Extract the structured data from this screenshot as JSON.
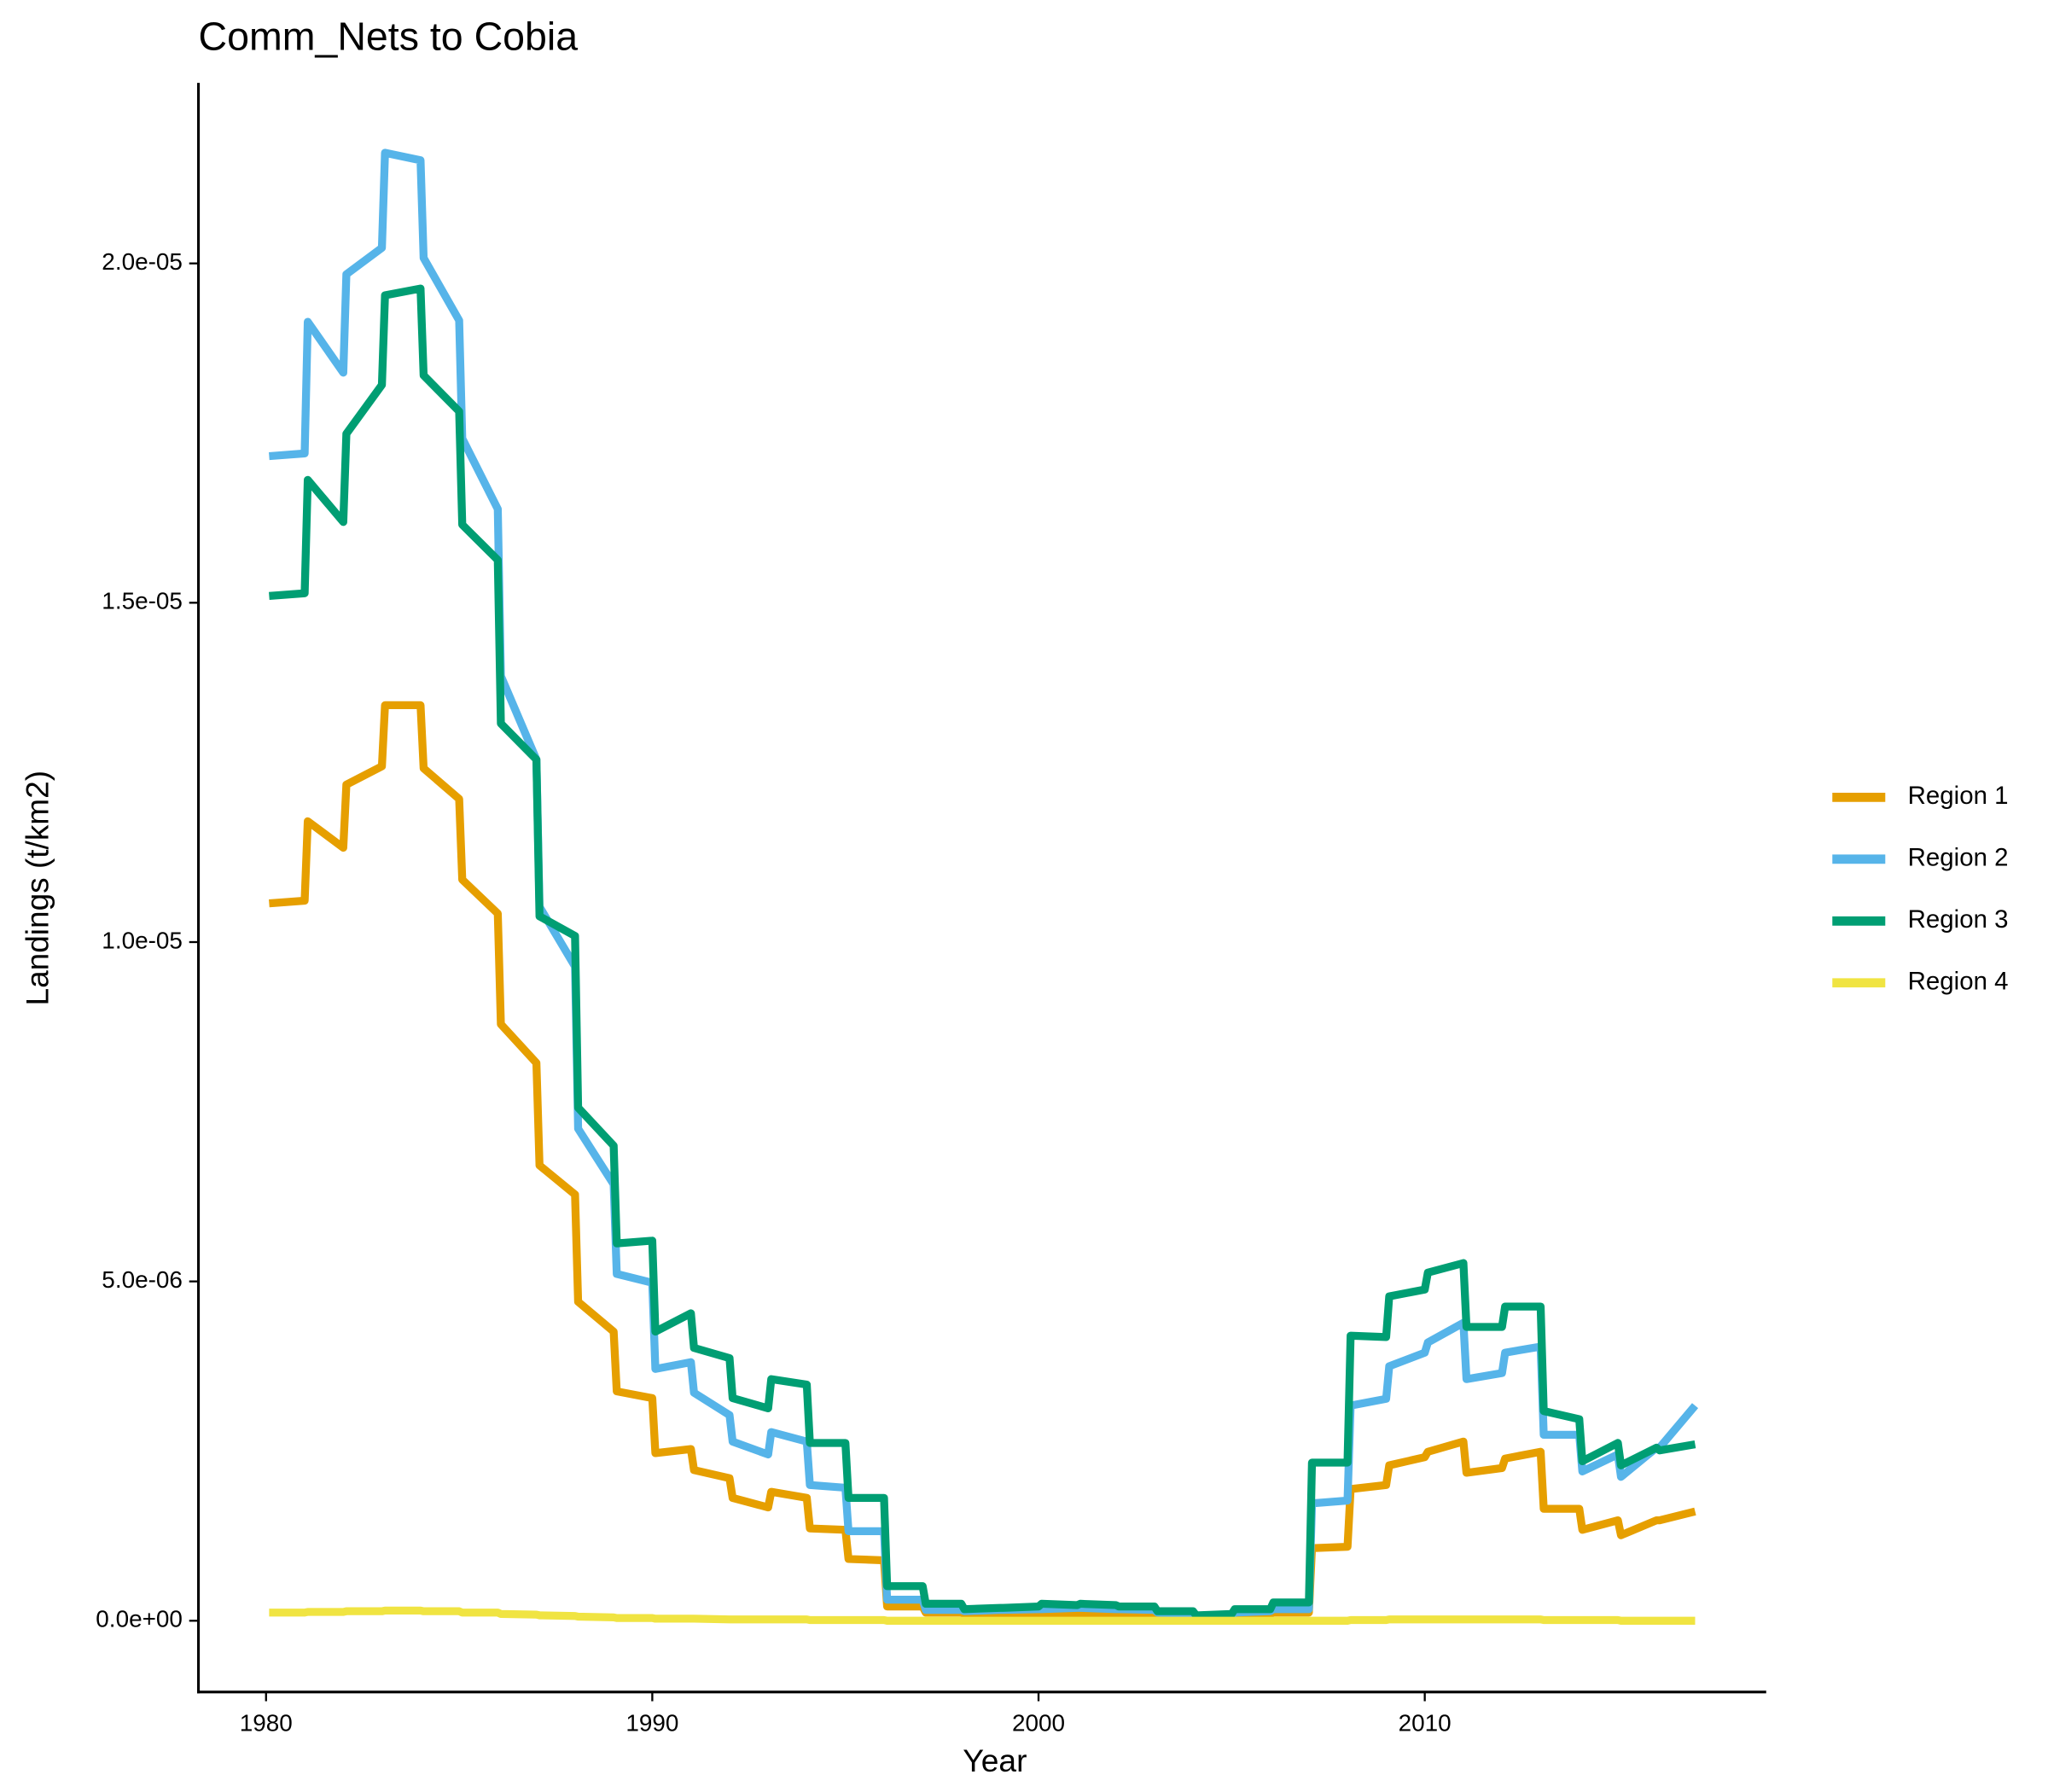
{
  "chart_data": {
    "type": "line",
    "title": "Comm_Nets to Cobia",
    "x_label": "Year",
    "y_label": "Landings (t/km2)",
    "x": [
      1980.08,
      1981,
      1981.08,
      1982,
      1982.08,
      1983,
      1983.08,
      1984,
      1984.08,
      1985,
      1985.08,
      1986,
      1986.08,
      1987,
      1987.08,
      1988,
      1988.08,
      1989,
      1989.08,
      1990,
      1990.08,
      1991,
      1991.08,
      1992,
      1992.08,
      1993,
      1993.08,
      1994,
      1994.08,
      1995,
      1995.08,
      1996,
      1996.08,
      1997,
      1997.08,
      1998,
      1998.08,
      1999,
      1999.08,
      2000,
      2000.08,
      2001,
      2001.08,
      2002,
      2002.08,
      2003,
      2003.08,
      2004,
      2004.08,
      2005,
      2005.08,
      2006,
      2006.08,
      2007,
      2007.08,
      2008,
      2008.08,
      2009,
      2009.08,
      2010,
      2010.08,
      2011,
      2011.08,
      2012,
      2012.08,
      2013,
      2013.08,
      2014,
      2014.08,
      2015,
      2015.08,
      2016,
      2016.08,
      2017
    ],
    "series": [
      {
        "name": "Region 1",
        "color": "#E69F00",
        "values": [
          1.057e-05,
          1.061e-05,
          1.178e-05,
          1.139e-05,
          1.232e-05,
          1.259e-05,
          1.349e-05,
          1.349e-05,
          1.256e-05,
          1.211e-05,
          1.092e-05,
          1.042e-05,
          8.79e-06,
          8.22e-06,
          6.71e-06,
          6.28e-06,
          4.7e-06,
          4.26e-06,
          3.38e-06,
          3.28e-06,
          2.47e-06,
          2.53e-06,
          2.22e-06,
          2.1e-06,
          1.81e-06,
          1.67e-06,
          1.9e-06,
          1.81e-06,
          1.36e-06,
          1.34e-06,
          9.1e-07,
          8.9e-07,
          2.1e-07,
          2.1e-07,
          1.2e-07,
          1.2e-07,
          1e-07,
          1e-07,
          1e-07,
          1.1e-07,
          1.1e-07,
          1.1e-07,
          1.1e-07,
          1.1e-07,
          1.1e-07,
          1e-07,
          8e-08,
          7e-08,
          5e-08,
          5e-08,
          9e-08,
          1e-07,
          1.2e-07,
          1.2e-07,
          1.07e-06,
          1.09e-06,
          1.94e-06,
          2e-06,
          2.29e-06,
          2.41e-06,
          2.49e-06,
          2.64e-06,
          2.18e-06,
          2.25e-06,
          2.39e-06,
          2.49e-06,
          1.65e-06,
          1.65e-06,
          1.34e-06,
          1.48e-06,
          1.26e-06,
          1.48e-06,
          1.48e-06,
          1.61e-06
        ]
      },
      {
        "name": "Region 2",
        "color": "#56B4E9",
        "values": [
          1.716e-05,
          1.72e-05,
          1.914e-05,
          1.839e-05,
          1.984e-05,
          2.023e-05,
          2.163e-05,
          2.152e-05,
          2.008e-05,
          1.916e-05,
          1.742e-05,
          1.638e-05,
          1.392e-05,
          1.269e-05,
          1.052e-05,
          9.64e-06,
          7.25e-06,
          6.43e-06,
          5.11e-06,
          4.98e-06,
          3.71e-06,
          3.81e-06,
          3.36e-06,
          3.03e-06,
          2.64e-06,
          2.45e-06,
          2.78e-06,
          2.64e-06,
          2e-06,
          1.96e-06,
          1.32e-06,
          1.32e-06,
          3.1e-07,
          3.1e-07,
          1.6e-07,
          1.6e-07,
          1.4e-07,
          1.6e-07,
          1.6e-07,
          1.7e-07,
          1.7e-07,
          1.9e-07,
          1.9e-07,
          1.7e-07,
          1.7e-07,
          1.6e-07,
          1.2e-07,
          1e-07,
          6e-08,
          6e-08,
          1.2e-07,
          1.4e-07,
          1.7e-07,
          1.7e-07,
          1.73e-06,
          1.77e-06,
          3.17e-06,
          3.27e-06,
          3.75e-06,
          3.95e-06,
          4.1e-06,
          4.39e-06,
          3.56e-06,
          3.65e-06,
          3.95e-06,
          4.04e-06,
          2.74e-06,
          2.74e-06,
          2.2e-06,
          2.45e-06,
          2.12e-06,
          2.55e-06,
          2.55e-06,
          3.17e-06
        ]
      },
      {
        "name": "Region 3",
        "color": "#009E73",
        "values": [
          1.51e-05,
          1.514e-05,
          1.681e-05,
          1.619e-05,
          1.749e-05,
          1.821e-05,
          1.953e-05,
          1.963e-05,
          1.835e-05,
          1.782e-05,
          1.615e-05,
          1.563e-05,
          1.322e-05,
          1.269e-05,
          1.038e-05,
          1.009e-05,
          7.56e-06,
          7e-06,
          5.56e-06,
          5.6e-06,
          4.26e-06,
          4.53e-06,
          4.02e-06,
          3.87e-06,
          3.28e-06,
          3.13e-06,
          3.56e-06,
          3.48e-06,
          2.62e-06,
          2.62e-06,
          1.81e-06,
          1.81e-06,
          5.1e-07,
          5.1e-07,
          2.5e-07,
          2.5e-07,
          1.7e-07,
          1.9e-07,
          1.9e-07,
          2.1e-07,
          2.5e-07,
          2.3e-07,
          2.5e-07,
          2.3e-07,
          2.1e-07,
          2.1e-07,
          1.4e-07,
          1.4e-07,
          8e-08,
          1e-07,
          1.7e-07,
          1.7e-07,
          2.7e-07,
          2.7e-07,
          2.33e-06,
          2.33e-06,
          4.2e-06,
          4.18e-06,
          4.78e-06,
          4.88e-06,
          5.13e-06,
          5.27e-06,
          4.33e-06,
          4.33e-06,
          4.63e-06,
          4.63e-06,
          3.09e-06,
          2.97e-06,
          2.35e-06,
          2.62e-06,
          2.29e-06,
          2.55e-06,
          2.51e-06,
          2.6e-06
        ]
      },
      {
        "name": "Region 4",
        "color": "#F0E442",
        "values": [
          1.2e-07,
          1.2e-07,
          1.3e-07,
          1.3e-07,
          1.4e-07,
          1.4e-07,
          1.5e-07,
          1.5e-07,
          1.4e-07,
          1.4e-07,
          1.2e-07,
          1.2e-07,
          1e-07,
          9e-08,
          8e-08,
          7e-08,
          6e-08,
          5e-08,
          4e-08,
          4e-08,
          3e-08,
          3e-08,
          3e-08,
          2e-08,
          2e-08,
          2e-08,
          2e-08,
          2e-08,
          1e-08,
          1e-08,
          1e-08,
          1e-08,
          0,
          0,
          0,
          0,
          0,
          0,
          0,
          0,
          0,
          0,
          0,
          0,
          0,
          0,
          0,
          0,
          0,
          0,
          0,
          0,
          0,
          0,
          0,
          0,
          1e-08,
          1e-08,
          2e-08,
          2e-08,
          2e-08,
          2e-08,
          2e-08,
          2e-08,
          2e-08,
          2e-08,
          1e-08,
          1e-08,
          1e-08,
          1e-08,
          0,
          0,
          0,
          0
        ]
      }
    ],
    "xlim": [
      1978.25,
      2018.84
    ],
    "xticks": [
      1980,
      1990,
      2000,
      2010
    ],
    "ylim": [
      -1.05e-06,
      2.266e-05
    ],
    "yticks": [
      {
        "value": 0,
        "label": "0.0e+00"
      },
      {
        "value": 5e-06,
        "label": "5.0e-06"
      },
      {
        "value": 1e-05,
        "label": "1.0e-05"
      },
      {
        "value": 1.5e-05,
        "label": "1.5e-05"
      },
      {
        "value": 2e-05,
        "label": "2.0e-05"
      }
    ],
    "grid": false,
    "legend": "right"
  }
}
